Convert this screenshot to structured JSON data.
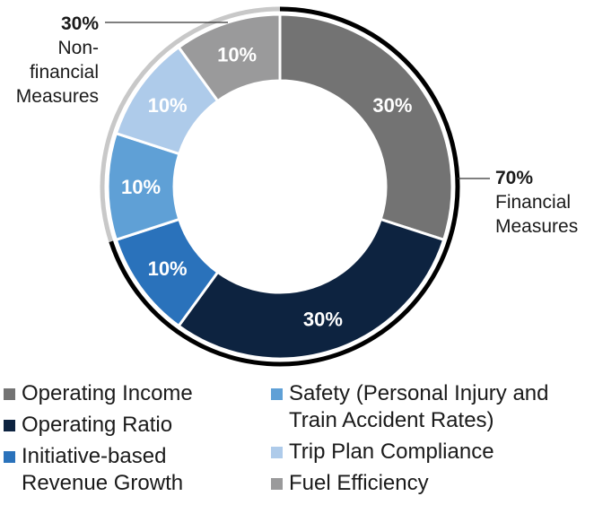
{
  "chart_data": {
    "type": "donut",
    "title": "",
    "series": [
      {
        "name": "Operating Income",
        "value": 30,
        "label": "30%",
        "color": "#737373",
        "group": "financial"
      },
      {
        "name": "Operating Ratio",
        "value": 30,
        "label": "30%",
        "color": "#0d2340",
        "group": "financial"
      },
      {
        "name": "Initiative-based Revenue Growth",
        "value": 10,
        "label": "10%",
        "color": "#2a72bb",
        "group": "financial"
      },
      {
        "name": "Safety (Personal Injury and Train Accident Rates)",
        "value": 10,
        "label": "10%",
        "color": "#5fa0d6",
        "group": "non-financial"
      },
      {
        "name": "Trip Plan Compliance",
        "value": 10,
        "label": "10%",
        "color": "#aecbea",
        "group": "non-financial"
      },
      {
        "name": "Fuel Efficiency",
        "value": 10,
        "label": "10%",
        "color": "#9a9a9b",
        "group": "non-financial"
      }
    ],
    "groups": {
      "financial": {
        "percent": "70%",
        "label": "Financial Measures",
        "ring_color": "#000000"
      },
      "non_financial": {
        "percent": "30%",
        "label": "Non-financial Measures",
        "ring_color": "#c8c8c8"
      }
    },
    "legend_left": [
      "Operating Income",
      "Operating Ratio",
      "Initiative-based Revenue Growth"
    ],
    "legend_right": [
      "Safety (Personal Injury and Train Accident Rates)",
      "Trip Plan Compliance",
      "Fuel Efficiency"
    ]
  },
  "callouts": {
    "non_financial": {
      "percent": "30%",
      "label": "Non-financial Measures"
    },
    "financial": {
      "percent": "70%",
      "label": "Financial Measures"
    }
  },
  "legend": {
    "left": [
      {
        "label": "Operating Income",
        "color": "#737373"
      },
      {
        "label": "Operating Ratio",
        "color": "#0d2340"
      },
      {
        "label": "Initiative-based Revenue Growth",
        "color": "#2a72bb"
      }
    ],
    "right": [
      {
        "label": "Safety (Personal Injury and Train Accident Rates)",
        "color": "#5fa0d6"
      },
      {
        "label": "Trip Plan Compliance",
        "color": "#aecbea"
      },
      {
        "label": "Fuel Efficiency",
        "color": "#9a9a9b"
      }
    ]
  }
}
